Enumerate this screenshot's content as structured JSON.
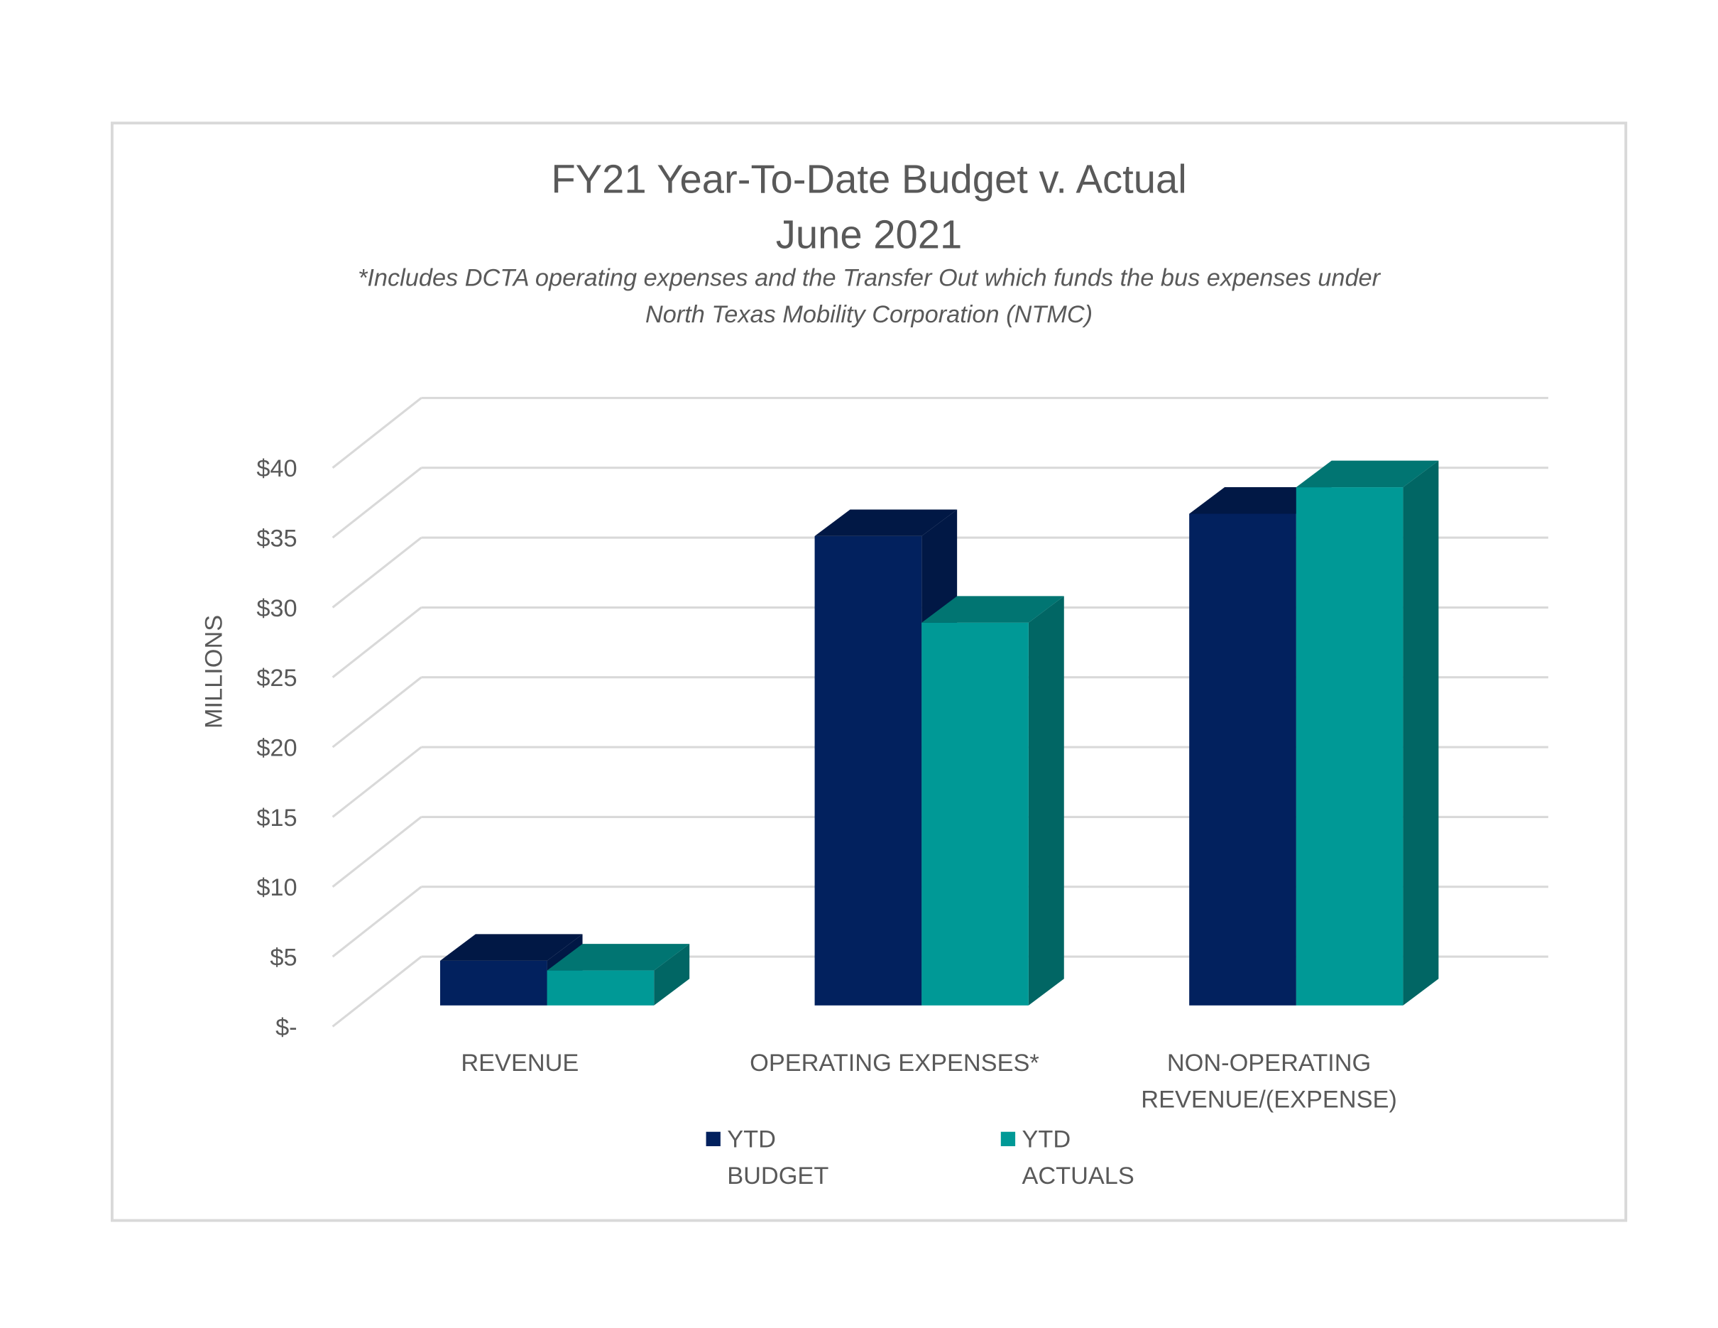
{
  "chart_data": {
    "type": "bar",
    "three_d": true,
    "title": "FY21 Year-To-Date Budget v. Actual",
    "subtitle": "June 2021",
    "note_lines": [
      "*Includes DCTA operating expenses and the Transfer Out which funds the bus expenses under",
      "North Texas Mobility Corporation (NTMC)"
    ],
    "ylabel": "MILLIONS",
    "ylim": [
      0,
      40
    ],
    "yticks": [
      0,
      5,
      10,
      15,
      20,
      25,
      30,
      35,
      40
    ],
    "ytick_labels": [
      "$-",
      "$5",
      "$10",
      "$15",
      "$20",
      "$25",
      "$30",
      "$35",
      "$40"
    ],
    "categories": [
      [
        "REVENUE"
      ],
      [
        "OPERATING EXPENSES*"
      ],
      [
        "NON-OPERATING",
        "REVENUE/(EXPENSE)"
      ]
    ],
    "series": [
      {
        "name": "YTD BUDGET",
        "legend_lines": [
          "YTD",
          "BUDGET"
        ],
        "color": "#02215e",
        "top_color": "#011845",
        "side_color": "#011845",
        "values": [
          3.2,
          33.6,
          35.2
        ]
      },
      {
        "name": "YTD ACTUALS",
        "legend_lines": [
          "YTD",
          "ACTUALS"
        ],
        "color": "#009996",
        "top_color": "#017572",
        "side_color": "#016664",
        "values": [
          2.5,
          27.4,
          37.1
        ]
      }
    ],
    "grid": true,
    "legend_position": "bottom"
  }
}
